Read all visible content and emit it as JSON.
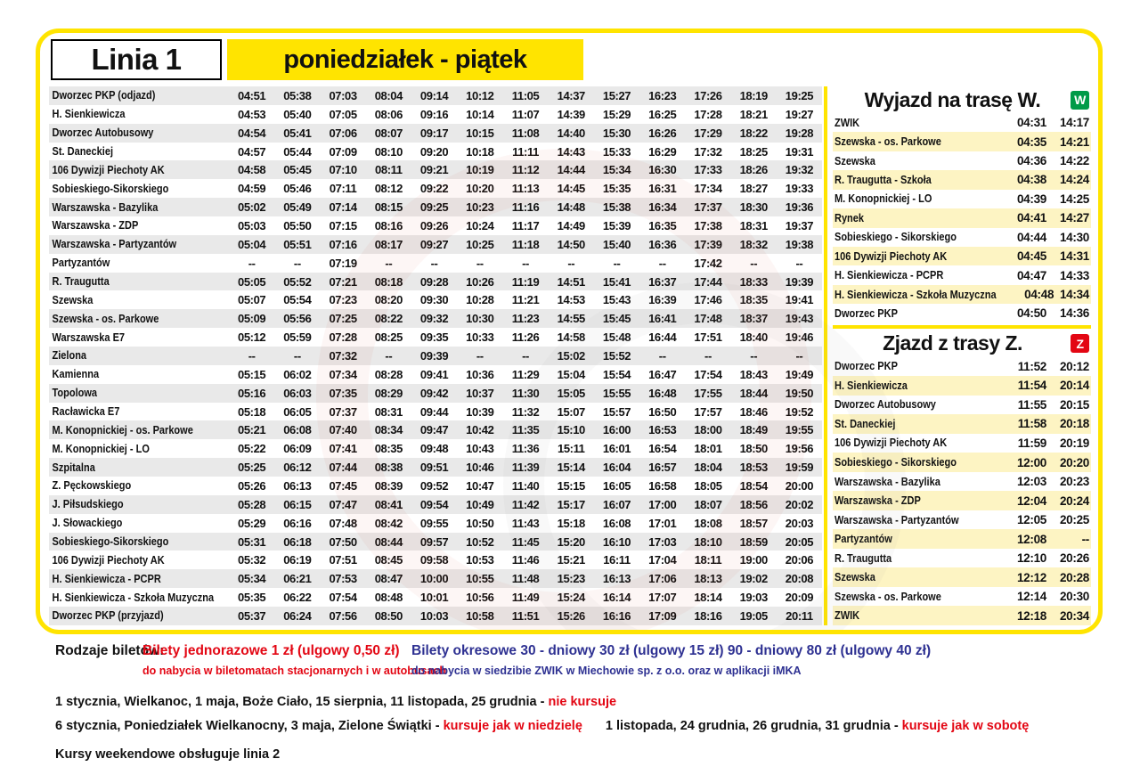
{
  "header": {
    "line": "Linia 1",
    "days": "poniedziałek - piątek"
  },
  "colors": {
    "yellow": "#ffe400",
    "green": "#009b48",
    "red": "#e30613",
    "blue": "#2e3192",
    "row_gray": "#e9e9e9",
    "row_yellow": "#fdf4c3"
  },
  "main_table": {
    "rows": [
      {
        "stop": "Dworzec PKP (odjazd)",
        "times": [
          "04:51",
          "05:38",
          "07:03",
          "08:04",
          "09:14",
          "10:12",
          "11:05",
          "14:37",
          "15:27",
          "16:23",
          "17:26",
          "18:19",
          "19:25"
        ]
      },
      {
        "stop": "H. Sienkiewicza",
        "times": [
          "04:53",
          "05:40",
          "07:05",
          "08:06",
          "09:16",
          "10:14",
          "11:07",
          "14:39",
          "15:29",
          "16:25",
          "17:28",
          "18:21",
          "19:27"
        ]
      },
      {
        "stop": "Dworzec Autobusowy",
        "times": [
          "04:54",
          "05:41",
          "07:06",
          "08:07",
          "09:17",
          "10:15",
          "11:08",
          "14:40",
          "15:30",
          "16:26",
          "17:29",
          "18:22",
          "19:28"
        ]
      },
      {
        "stop": "St. Daneckiej",
        "times": [
          "04:57",
          "05:44",
          "07:09",
          "08:10",
          "09:20",
          "10:18",
          "11:11",
          "14:43",
          "15:33",
          "16:29",
          "17:32",
          "18:25",
          "19:31"
        ]
      },
      {
        "stop": "106 Dywizji Piechoty AK",
        "times": [
          "04:58",
          "05:45",
          "07:10",
          "08:11",
          "09:21",
          "10:19",
          "11:12",
          "14:44",
          "15:34",
          "16:30",
          "17:33",
          "18:26",
          "19:32"
        ]
      },
      {
        "stop": "Sobieskiego-Sikorskiego",
        "times": [
          "04:59",
          "05:46",
          "07:11",
          "08:12",
          "09:22",
          "10:20",
          "11:13",
          "14:45",
          "15:35",
          "16:31",
          "17:34",
          "18:27",
          "19:33"
        ]
      },
      {
        "stop": "Warszawska - Bazylika",
        "times": [
          "05:02",
          "05:49",
          "07:14",
          "08:15",
          "09:25",
          "10:23",
          "11:16",
          "14:48",
          "15:38",
          "16:34",
          "17:37",
          "18:30",
          "19:36"
        ]
      },
      {
        "stop": "Warszawska - ZDP",
        "times": [
          "05:03",
          "05:50",
          "07:15",
          "08:16",
          "09:26",
          "10:24",
          "11:17",
          "14:49",
          "15:39",
          "16:35",
          "17:38",
          "18:31",
          "19:37"
        ]
      },
      {
        "stop": "Warszawska - Partyzantów",
        "times": [
          "05:04",
          "05:51",
          "07:16",
          "08:17",
          "09:27",
          "10:25",
          "11:18",
          "14:50",
          "15:40",
          "16:36",
          "17:39",
          "18:32",
          "19:38"
        ]
      },
      {
        "stop": "Partyzantów",
        "times": [
          "--",
          "--",
          "07:19",
          "--",
          "--",
          "--",
          "--",
          "--",
          "--",
          "--",
          "17:42",
          "--",
          "--"
        ]
      },
      {
        "stop": "R. Traugutta",
        "times": [
          "05:05",
          "05:52",
          "07:21",
          "08:18",
          "09:28",
          "10:26",
          "11:19",
          "14:51",
          "15:41",
          "16:37",
          "17:44",
          "18:33",
          "19:39"
        ]
      },
      {
        "stop": "Szewska",
        "times": [
          "05:07",
          "05:54",
          "07:23",
          "08:20",
          "09:30",
          "10:28",
          "11:21",
          "14:53",
          "15:43",
          "16:39",
          "17:46",
          "18:35",
          "19:41"
        ]
      },
      {
        "stop": "Szewska - os. Parkowe",
        "times": [
          "05:09",
          "05:56",
          "07:25",
          "08:22",
          "09:32",
          "10:30",
          "11:23",
          "14:55",
          "15:45",
          "16:41",
          "17:48",
          "18:37",
          "19:43"
        ]
      },
      {
        "stop": "Warszawska E7",
        "times": [
          "05:12",
          "05:59",
          "07:28",
          "08:25",
          "09:35",
          "10:33",
          "11:26",
          "14:58",
          "15:48",
          "16:44",
          "17:51",
          "18:40",
          "19:46"
        ]
      },
      {
        "stop": "Zielona",
        "times": [
          "--",
          "--",
          "07:32",
          "--",
          "09:39",
          "--",
          "--",
          "15:02",
          "15:52",
          "--",
          "--",
          "--",
          "--"
        ]
      },
      {
        "stop": "Kamienna",
        "times": [
          "05:15",
          "06:02",
          "07:34",
          "08:28",
          "09:41",
          "10:36",
          "11:29",
          "15:04",
          "15:54",
          "16:47",
          "17:54",
          "18:43",
          "19:49"
        ]
      },
      {
        "stop": "Topolowa",
        "times": [
          "05:16",
          "06:03",
          "07:35",
          "08:29",
          "09:42",
          "10:37",
          "11:30",
          "15:05",
          "15:55",
          "16:48",
          "17:55",
          "18:44",
          "19:50"
        ]
      },
      {
        "stop": "Racławicka E7",
        "times": [
          "05:18",
          "06:05",
          "07:37",
          "08:31",
          "09:44",
          "10:39",
          "11:32",
          "15:07",
          "15:57",
          "16:50",
          "17:57",
          "18:46",
          "19:52"
        ]
      },
      {
        "stop": "M. Konopnickiej - os. Parkowe",
        "times": [
          "05:21",
          "06:08",
          "07:40",
          "08:34",
          "09:47",
          "10:42",
          "11:35",
          "15:10",
          "16:00",
          "16:53",
          "18:00",
          "18:49",
          "19:55"
        ]
      },
      {
        "stop": "M. Konopnickiej - LO",
        "times": [
          "05:22",
          "06:09",
          "07:41",
          "08:35",
          "09:48",
          "10:43",
          "11:36",
          "15:11",
          "16:01",
          "16:54",
          "18:01",
          "18:50",
          "19:56"
        ]
      },
      {
        "stop": "Szpitalna",
        "times": [
          "05:25",
          "06:12",
          "07:44",
          "08:38",
          "09:51",
          "10:46",
          "11:39",
          "15:14",
          "16:04",
          "16:57",
          "18:04",
          "18:53",
          "19:59"
        ]
      },
      {
        "stop": "Z. Pęckowskiego",
        "times": [
          "05:26",
          "06:13",
          "07:45",
          "08:39",
          "09:52",
          "10:47",
          "11:40",
          "15:15",
          "16:05",
          "16:58",
          "18:05",
          "18:54",
          "20:00"
        ]
      },
      {
        "stop": "J. Piłsudskiego",
        "times": [
          "05:28",
          "06:15",
          "07:47",
          "08:41",
          "09:54",
          "10:49",
          "11:42",
          "15:17",
          "16:07",
          "17:00",
          "18:07",
          "18:56",
          "20:02"
        ]
      },
      {
        "stop": "J. Słowackiego",
        "times": [
          "05:29",
          "06:16",
          "07:48",
          "08:42",
          "09:55",
          "10:50",
          "11:43",
          "15:18",
          "16:08",
          "17:01",
          "18:08",
          "18:57",
          "20:03"
        ]
      },
      {
        "stop": "Sobieskiego-Sikorskiego",
        "times": [
          "05:31",
          "06:18",
          "07:50",
          "08:44",
          "09:57",
          "10:52",
          "11:45",
          "15:20",
          "16:10",
          "17:03",
          "18:10",
          "18:59",
          "20:05"
        ]
      },
      {
        "stop": "106 Dywizji Piechoty AK",
        "times": [
          "05:32",
          "06:19",
          "07:51",
          "08:45",
          "09:58",
          "10:53",
          "11:46",
          "15:21",
          "16:11",
          "17:04",
          "18:11",
          "19:00",
          "20:06"
        ]
      },
      {
        "stop": "H. Sienkiewicza - PCPR",
        "times": [
          "05:34",
          "06:21",
          "07:53",
          "08:47",
          "10:00",
          "10:55",
          "11:48",
          "15:23",
          "16:13",
          "17:06",
          "18:13",
          "19:02",
          "20:08"
        ]
      },
      {
        "stop": "H. Sienkiewicza - Szkoła Muzyczna",
        "times": [
          "05:35",
          "06:22",
          "07:54",
          "08:48",
          "10:01",
          "10:56",
          "11:49",
          "15:24",
          "16:14",
          "17:07",
          "18:14",
          "19:03",
          "20:09"
        ]
      },
      {
        "stop": "Dworzec PKP (przyjazd)",
        "times": [
          "05:37",
          "06:24",
          "07:56",
          "08:50",
          "10:03",
          "10:58",
          "11:51",
          "15:26",
          "16:16",
          "17:09",
          "18:16",
          "19:05",
          "20:11"
        ]
      }
    ]
  },
  "wyjazd": {
    "title": "Wyjazd na trasę W.",
    "badge": "W",
    "rows": [
      {
        "stop": "ZWIK",
        "t1": "04:31",
        "t2": "14:17"
      },
      {
        "stop": "Szewska - os. Parkowe",
        "t1": "04:35",
        "t2": "14:21"
      },
      {
        "stop": "Szewska",
        "t1": "04:36",
        "t2": "14:22"
      },
      {
        "stop": "R. Traugutta - Szkoła",
        "t1": "04:38",
        "t2": "14:24"
      },
      {
        "stop": "M. Konopnickiej - LO",
        "t1": "04:39",
        "t2": "14:25"
      },
      {
        "stop": "Rynek",
        "t1": "04:41",
        "t2": "14:27"
      },
      {
        "stop": "Sobieskiego - Sikorskiego",
        "t1": "04:44",
        "t2": "14:30"
      },
      {
        "stop": "106 Dywizji Piechoty AK",
        "t1": "04:45",
        "t2": "14:31"
      },
      {
        "stop": "H. Sienkiewicza - PCPR",
        "t1": "04:47",
        "t2": "14:33"
      },
      {
        "stop": "H. Sienkiewicza - Szkoła Muzyczna",
        "t1": "04:48",
        "t2": "14:34"
      },
      {
        "stop": "Dworzec PKP",
        "t1": "04:50",
        "t2": "14:36"
      }
    ]
  },
  "zjazd": {
    "title": "Zjazd z trasy Z.",
    "badge": "Z",
    "rows": [
      {
        "stop": "Dworzec PKP",
        "t1": "11:52",
        "t2": "20:12"
      },
      {
        "stop": "H. Sienkiewicza",
        "t1": "11:54",
        "t2": "20:14"
      },
      {
        "stop": "Dworzec Autobusowy",
        "t1": "11:55",
        "t2": "20:15"
      },
      {
        "stop": "St. Daneckiej",
        "t1": "11:58",
        "t2": "20:18"
      },
      {
        "stop": "106 Dywizji Piechoty AK",
        "t1": "11:59",
        "t2": "20:19"
      },
      {
        "stop": "Sobieskiego - Sikorskiego",
        "t1": "12:00",
        "t2": "20:20"
      },
      {
        "stop": "Warszawska - Bazylika",
        "t1": "12:03",
        "t2": "20:23"
      },
      {
        "stop": "Warszawska - ZDP",
        "t1": "12:04",
        "t2": "20:24"
      },
      {
        "stop": "Warszawska - Partyzantów",
        "t1": "12:05",
        "t2": "20:25"
      },
      {
        "stop": "Partyzantów",
        "t1": "12:08",
        "t2": "--"
      },
      {
        "stop": "R. Traugutta",
        "t1": "12:10",
        "t2": "20:26"
      },
      {
        "stop": "Szewska",
        "t1": "12:12",
        "t2": "20:28"
      },
      {
        "stop": "Szewska - os. Parkowe",
        "t1": "12:14",
        "t2": "20:30"
      },
      {
        "stop": "ZWIK",
        "t1": "12:18",
        "t2": "20:34"
      }
    ]
  },
  "notes": {
    "tickets_label": "Rodzaje biletów:",
    "single": "Bilety jednorazowe 1 zł (ulgowy 0,50 zł)",
    "single_sub": "do nabycia w biletomatach stacjonarnych i w autobusach",
    "period": "Bilety okresowe 30 - dniowy 30 zł (ulgowy 15 zł)  90 - dniowy 80 zł (ulgowy 40 zł)",
    "period_sub": "do nabycia w siedzibie ZWIK w Miechowie sp. z o.o. oraz w aplikacji iMKA",
    "holidays1_black": "1 stycznia, Wielkanoc, 1 maja, Boże Ciało, 15 sierpnia, 11 listopada, 25 grudnia - ",
    "holidays1_red": "nie kursuje",
    "holidays2_black1": "6 stycznia, Poniedziałek Wielkanocny, 3 maja, Zielone Świątki - ",
    "holidays2_red1": "kursuje jak w niedzielę",
    "holidays2_black2": "1 listopada, 24 grudnia, 26 grudnia, 31 grudnia - ",
    "holidays2_red2": "kursuje jak w sobotę",
    "weekend": "Kursy weekendowe obsługuje linia 2"
  }
}
